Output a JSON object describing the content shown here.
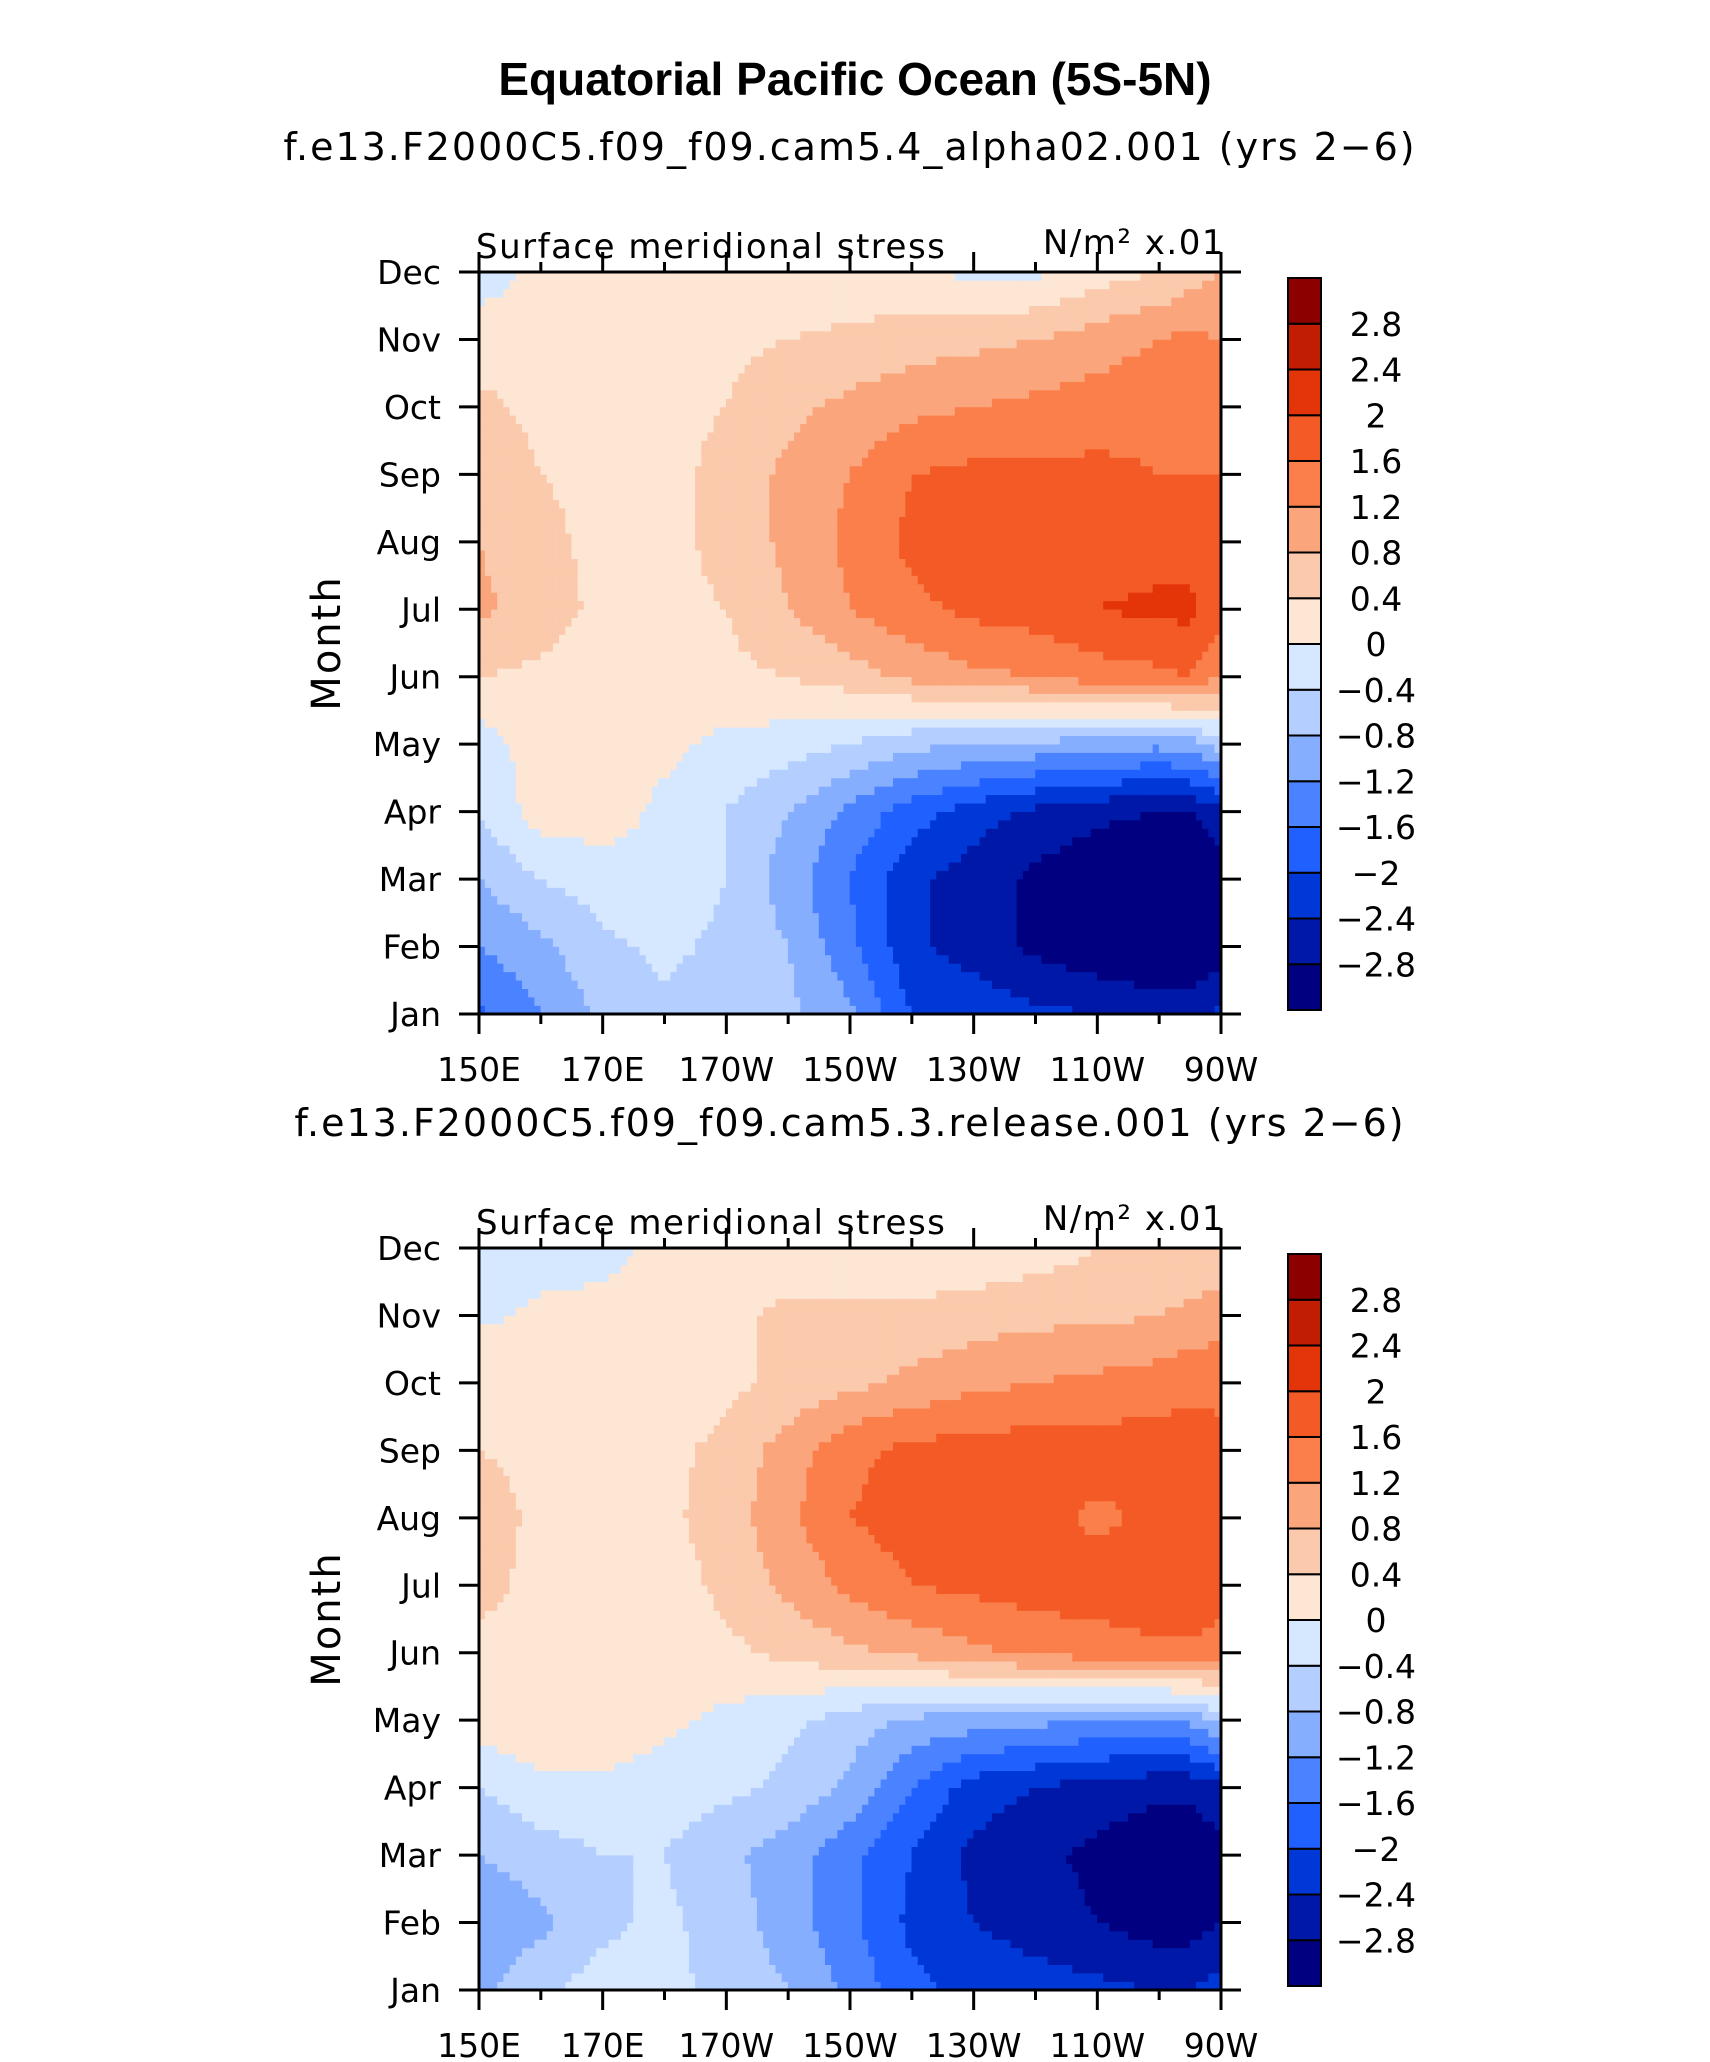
{
  "figure_title": "Equatorial Pacific Ocean (5S-5N)",
  "colorbar": {
    "levels": [
      -2.8,
      -2.4,
      -2,
      -1.6,
      -1.2,
      -0.8,
      -0.4,
      0,
      0.4,
      0.8,
      1.2,
      1.6,
      2,
      2.4,
      2.8
    ],
    "labels": [
      "−2.8",
      "−2.4",
      "−2",
      "−1.6",
      "−1.2",
      "−0.8",
      "−0.4",
      "0",
      "0.4",
      "0.8",
      "1.2",
      "1.6",
      "2",
      "2.4",
      "2.8"
    ],
    "colors": [
      "#000080",
      "#0018a8",
      "#0038d8",
      "#2060ff",
      "#4a82ff",
      "#86aeff",
      "#b3ceff",
      "#d6e8ff",
      "#fde6d4",
      "#fbc9ab",
      "#faa57c",
      "#fa7f4a",
      "#f35a26",
      "#e43409",
      "#c01d03",
      "#8c0000"
    ]
  },
  "chart_data": [
    {
      "type": "heatmap",
      "title": "f.e13.F2000C5.f09_f09.cam5.4_alpha02.001 (yrs 2−6)",
      "left_string": "Surface meridional stress",
      "units": "N/m² x.01",
      "xlabel": "",
      "ylabel": "Month",
      "x": [
        150,
        160,
        170,
        180,
        190,
        200,
        210,
        220,
        230,
        240,
        250,
        260,
        265,
        270
      ],
      "x_tick_values": [
        150,
        170,
        190,
        210,
        230,
        250,
        270
      ],
      "x_tick_labels": [
        "150E",
        "170E",
        "170W",
        "150W",
        "130W",
        "110W",
        "90W"
      ],
      "xlim": [
        150,
        270
      ],
      "y_tick_labels": [
        "Jan",
        "Feb",
        "Mar",
        "Apr",
        "May",
        "Jun",
        "Jul",
        "Aug",
        "Sep",
        "Oct",
        "Nov",
        "Dec"
      ],
      "ylim": [
        1,
        12
      ],
      "z": [
        [
          -1.7,
          -1.2,
          -0.7,
          -0.5,
          -0.6,
          -0.7,
          -1.1,
          -2.0,
          -2.1,
          -2.3,
          -2.4,
          -2.6,
          -2.6,
          -2.3
        ],
        [
          -1.2,
          -0.9,
          -0.5,
          -0.3,
          -0.5,
          -0.8,
          -1.5,
          -2.3,
          -2.6,
          -2.9,
          -3.1,
          -3.2,
          -3.2,
          -3.0
        ],
        [
          -0.8,
          -0.4,
          -0.2,
          -0.1,
          -0.4,
          -1.0,
          -1.6,
          -2.3,
          -2.6,
          -2.9,
          -3.1,
          -3.3,
          -3.3,
          -3.1
        ],
        [
          -0.4,
          0.2,
          0.2,
          -0.1,
          -0.4,
          -0.8,
          -1.3,
          -1.8,
          -2.2,
          -2.5,
          -2.7,
          -2.8,
          -2.8,
          -2.5
        ],
        [
          -0.2,
          0.2,
          0.2,
          0.1,
          -0.1,
          -0.2,
          -0.4,
          -0.7,
          -0.8,
          -0.9,
          -1.0,
          -1.1,
          -1.0,
          -0.6
        ],
        [
          0.4,
          0.3,
          0.2,
          0.2,
          0.3,
          0.4,
          0.6,
          0.9,
          1.1,
          1.2,
          1.4,
          1.5,
          1.6,
          1.2
        ],
        [
          0.9,
          0.6,
          0.3,
          0.3,
          0.4,
          0.8,
          1.2,
          1.5,
          1.7,
          1.8,
          2.0,
          2.1,
          2.1,
          1.8
        ],
        [
          0.8,
          0.5,
          0.3,
          0.3,
          0.5,
          0.9,
          1.3,
          1.7,
          1.8,
          1.8,
          1.8,
          1.8,
          1.8,
          1.7
        ],
        [
          0.7,
          0.4,
          0.3,
          0.3,
          0.5,
          0.9,
          1.2,
          1.6,
          1.7,
          1.7,
          1.7,
          1.6,
          1.6,
          1.6
        ],
        [
          0.5,
          0.3,
          0.3,
          0.3,
          0.4,
          0.7,
          0.9,
          1.1,
          1.2,
          1.3,
          1.4,
          1.5,
          1.5,
          1.5
        ],
        [
          0.2,
          0.2,
          0.2,
          0.2,
          0.3,
          0.4,
          0.5,
          0.6,
          0.7,
          0.8,
          1.0,
          1.2,
          1.3,
          1.2
        ],
        [
          -0.2,
          0.1,
          0.1,
          0.1,
          0.1,
          0.1,
          0.1,
          0.1,
          -0.1,
          -0.1,
          0.2,
          0.4,
          0.6,
          0.8
        ]
      ]
    },
    {
      "type": "heatmap",
      "title": "f.e13.F2000C5.f09_f09.cam5.3.release.001 (yrs 2−6)",
      "left_string": "Surface meridional stress",
      "units": "N/m² x.01",
      "xlabel": "",
      "ylabel": "Month",
      "x": [
        150,
        160,
        170,
        180,
        190,
        200,
        210,
        220,
        230,
        240,
        250,
        260,
        265,
        270
      ],
      "x_tick_values": [
        150,
        170,
        190,
        210,
        230,
        250,
        270
      ],
      "x_tick_labels": [
        "150E",
        "170E",
        "170W",
        "150W",
        "130W",
        "110W",
        "90W"
      ],
      "xlim": [
        150,
        270
      ],
      "y_tick_labels": [
        "Jan",
        "Feb",
        "Mar",
        "Apr",
        "May",
        "Jun",
        "Jul",
        "Aug",
        "Sep",
        "Oct",
        "Nov",
        "Dec"
      ],
      "ylim": [
        1,
        12
      ],
      "z": [
        [
          -0.9,
          -0.5,
          -0.2,
          -0.3,
          -0.5,
          -0.8,
          -1.3,
          -1.9,
          -2.1,
          -2.2,
          -2.3,
          -2.4,
          -2.4,
          -2.2
        ],
        [
          -1.1,
          -0.9,
          -0.5,
          -0.3,
          -0.6,
          -1.0,
          -1.5,
          -2.1,
          -2.4,
          -2.6,
          -2.8,
          -3.0,
          -3.0,
          -2.8
        ],
        [
          -0.8,
          -0.6,
          -0.4,
          -0.4,
          -0.7,
          -1.0,
          -1.5,
          -2.0,
          -2.5,
          -2.7,
          -2.9,
          -3.1,
          -3.1,
          -3.0
        ],
        [
          -0.4,
          -0.1,
          -0.1,
          -0.2,
          -0.3,
          -0.5,
          -0.9,
          -1.6,
          -2.2,
          -2.4,
          -2.6,
          -2.7,
          -2.7,
          -2.5
        ],
        [
          0.2,
          0.3,
          0.3,
          0.1,
          -0.1,
          -0.3,
          -0.6,
          -0.9,
          -1.0,
          -1.1,
          -1.2,
          -1.2,
          -1.1,
          -0.7
        ],
        [
          0.3,
          0.3,
          0.2,
          0.2,
          0.3,
          0.5,
          0.7,
          0.9,
          1.1,
          1.3,
          1.4,
          1.5,
          1.5,
          1.4
        ],
        [
          0.5,
          0.3,
          0.2,
          0.2,
          0.5,
          0.9,
          1.3,
          1.6,
          1.7,
          1.8,
          1.8,
          1.9,
          2.0,
          1.8
        ],
        [
          0.6,
          0.3,
          0.2,
          0.3,
          0.6,
          1.1,
          1.6,
          1.8,
          1.8,
          1.8,
          1.5,
          1.7,
          1.7,
          1.7
        ],
        [
          0.4,
          0.3,
          0.2,
          0.3,
          0.5,
          1.0,
          1.5,
          1.7,
          1.8,
          1.8,
          1.8,
          1.8,
          1.8,
          1.7
        ],
        [
          0.4,
          0.3,
          0.2,
          0.2,
          0.3,
          0.5,
          0.7,
          0.9,
          1.1,
          1.2,
          1.3,
          1.4,
          1.5,
          1.5
        ],
        [
          -0.1,
          0.1,
          0.1,
          0.1,
          0.3,
          0.5,
          0.5,
          0.5,
          0.6,
          0.7,
          0.7,
          0.8,
          0.9,
          1.0
        ],
        [
          -0.3,
          -0.2,
          -0.1,
          0.1,
          0.1,
          0.1,
          0.1,
          0.1,
          0.1,
          0.2,
          0.4,
          0.4,
          0.5,
          0.5
        ]
      ]
    }
  ]
}
